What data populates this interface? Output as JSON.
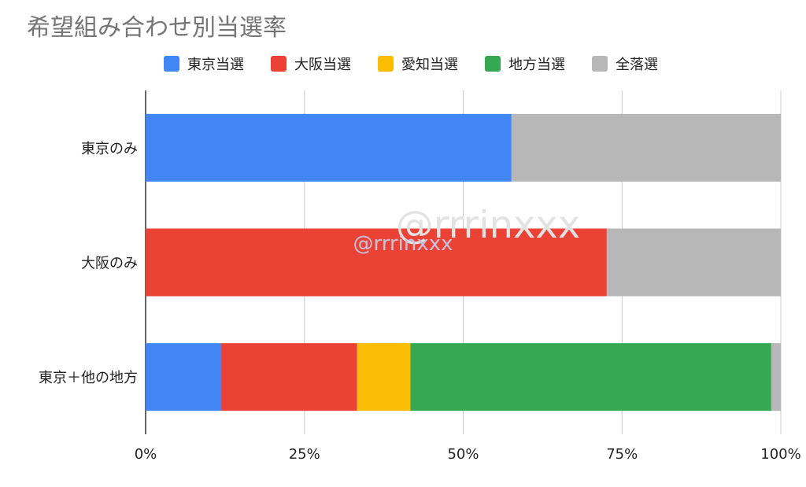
{
  "chart_data": {
    "type": "bar",
    "orientation": "horizontal",
    "stacked": "percent",
    "title": "希望組み合わせ別当選率",
    "categories": [
      "東京のみ",
      "大阪のみ",
      "東京＋他の地方"
    ],
    "series": [
      {
        "name": "東京当選",
        "color": "#4285f4",
        "values": [
          57.6,
          0,
          11.9
        ]
      },
      {
        "name": "大阪当選",
        "color": "#ea4335",
        "values": [
          0,
          72.6,
          21.4
        ]
      },
      {
        "name": "愛知当選",
        "color": "#fbbc04",
        "values": [
          0,
          0,
          8.4
        ]
      },
      {
        "name": "地方当選",
        "color": "#34a853",
        "values": [
          0,
          0,
          56.8
        ]
      },
      {
        "name": "全落選",
        "color": "#b7b7b7",
        "values": [
          42.4,
          27.4,
          1.5
        ]
      }
    ],
    "xlim": [
      0,
      100
    ],
    "xticks": [
      "0%",
      "25%",
      "50%",
      "75%",
      "100%"
    ],
    "grid": true,
    "legend": "top"
  },
  "watermarks": [
    "@rrrinxxx",
    "@rrrinxxx"
  ]
}
